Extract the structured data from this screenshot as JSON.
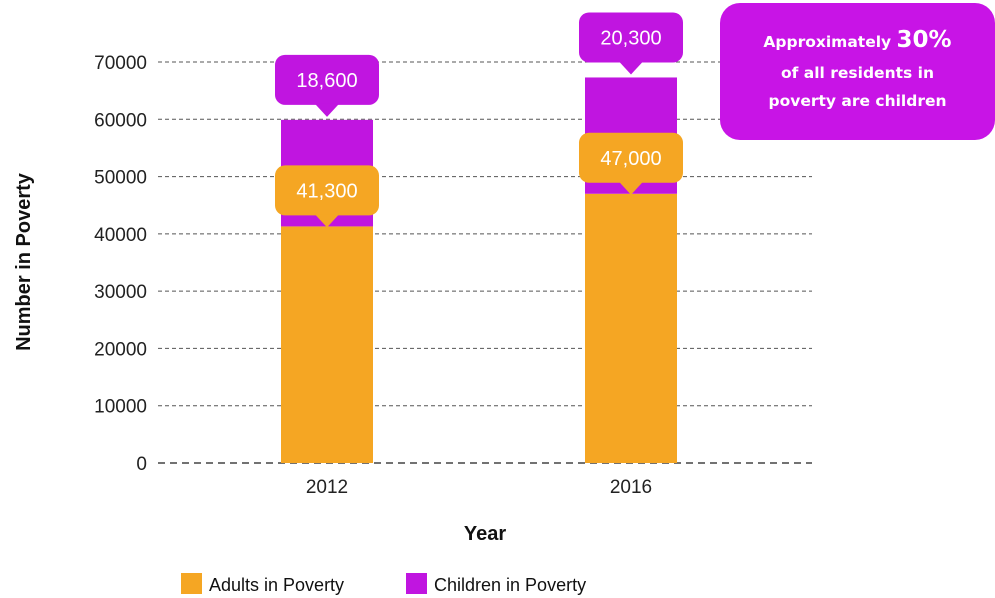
{
  "chart_data": {
    "type": "bar",
    "stacked": true,
    "categories": [
      "2012",
      "2016"
    ],
    "series": [
      {
        "name": "Adults in Poverty",
        "values": [
          41300,
          47000
        ],
        "labels": [
          "41,300",
          "47,000"
        ],
        "color": "#f5a623"
      },
      {
        "name": "Children in Poverty",
        "values": [
          18600,
          20300
        ],
        "labels": [
          "18,600",
          "20,300"
        ],
        "color": "#c015e0"
      }
    ],
    "xlabel": "Year",
    "ylabel": "Number in Poverty",
    "ylim": [
      0,
      70000
    ],
    "yticks": [
      "0",
      "10000",
      "20000",
      "30000",
      "40000",
      "50000",
      "60000",
      "70000"
    ],
    "grid": "dashed horizontal",
    "legend": "bottom"
  },
  "callout": {
    "prefix": "Approximately ",
    "highlight": "30%",
    "line2": "of all residents in",
    "line3": "poverty are children",
    "color": "#c814e6"
  }
}
